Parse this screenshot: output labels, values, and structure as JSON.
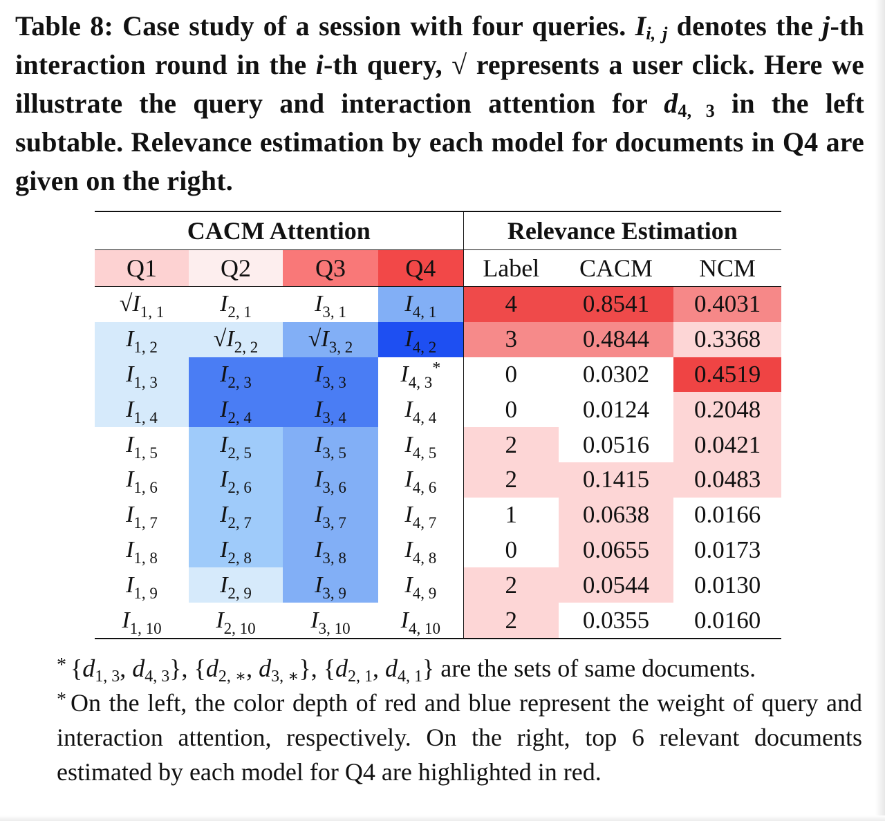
{
  "caption": {
    "lead": "Table 8: Case study of a session with four queries.",
    "sym_I": "I",
    "sym_ij": "i, j",
    "t1": " denotes the ",
    "sym_j": "j",
    "t2": "-th interaction round in the ",
    "sym_i": "i",
    "t3": "-th query, √ represents a user click. Here we illustrate the query and interaction attention for ",
    "sym_d": "d",
    "sym_43": "4, 3",
    "t4": " in the left subtable. Relevance estimation by each model for documents in Q4 are given on the right."
  },
  "table": {
    "group_left": "CACM Attention",
    "group_right": "Relevance Estimation",
    "headers": [
      "Q1",
      "Q2",
      "Q3",
      "Q4",
      "Label",
      "CACM",
      "NCM"
    ],
    "header_colors": [
      "#fdd2d2",
      "#fdeeee",
      "#f97878",
      "#f24848",
      "#ffffff",
      "#ffffff",
      "#ffffff"
    ],
    "rows": [
      {
        "cells": [
          {
            "click": "√",
            "sym": "I",
            "sub": "1, 1",
            "mark": ""
          },
          {
            "click": "",
            "sym": "I",
            "sub": "2, 1",
            "mark": ""
          },
          {
            "click": "",
            "sym": "I",
            "sub": "3, 1",
            "mark": ""
          },
          {
            "click": "",
            "sym": "I",
            "sub": "4, 1",
            "mark": ""
          }
        ],
        "label": "4",
        "cacm": "0.8541",
        "ncm": "0.4031",
        "colors": [
          "#ffffff",
          "#ffffff",
          "#ffffff",
          "#82aff6",
          "#ef4a4a",
          "#ef4a4a",
          "#f68888"
        ]
      },
      {
        "cells": [
          {
            "click": "",
            "sym": "I",
            "sub": "1, 2",
            "mark": ""
          },
          {
            "click": "√",
            "sym": "I",
            "sub": "2, 2",
            "mark": ""
          },
          {
            "click": "√",
            "sym": "I",
            "sub": "3, 2",
            "mark": ""
          },
          {
            "click": "",
            "sym": "I",
            "sub": "4, 2",
            "mark": ""
          }
        ],
        "label": "3",
        "cacm": "0.4844",
        "ncm": "0.3368",
        "colors": [
          "#d6eafb",
          "#d6eafb",
          "#82aff6",
          "#1e4ff2",
          "#f68a8a",
          "#f68a8a",
          "#fdd6d6"
        ]
      },
      {
        "cells": [
          {
            "click": "",
            "sym": "I",
            "sub": "1, 3",
            "mark": ""
          },
          {
            "click": "",
            "sym": "I",
            "sub": "2, 3",
            "mark": ""
          },
          {
            "click": "",
            "sym": "I",
            "sub": "3, 3",
            "mark": ""
          },
          {
            "click": "",
            "sym": "I",
            "sub": "4, 3",
            "mark": "*"
          }
        ],
        "label": "0",
        "cacm": "0.0302",
        "ncm": "0.4519",
        "colors": [
          "#d6eafb",
          "#4a7df4",
          "#4a7df4",
          "#ffffff",
          "#ffffff",
          "#ffffff",
          "#ef4444"
        ]
      },
      {
        "cells": [
          {
            "click": "",
            "sym": "I",
            "sub": "1, 4",
            "mark": ""
          },
          {
            "click": "",
            "sym": "I",
            "sub": "2, 4",
            "mark": ""
          },
          {
            "click": "",
            "sym": "I",
            "sub": "3, 4",
            "mark": ""
          },
          {
            "click": "",
            "sym": "I",
            "sub": "4, 4",
            "mark": ""
          }
        ],
        "label": "0",
        "cacm": "0.0124",
        "ncm": "0.2048",
        "colors": [
          "#d6eafb",
          "#4a7df4",
          "#4a7df4",
          "#ffffff",
          "#ffffff",
          "#ffffff",
          "#fdd6d6"
        ]
      },
      {
        "cells": [
          {
            "click": "",
            "sym": "I",
            "sub": "1, 5",
            "mark": ""
          },
          {
            "click": "",
            "sym": "I",
            "sub": "2, 5",
            "mark": ""
          },
          {
            "click": "",
            "sym": "I",
            "sub": "3, 5",
            "mark": ""
          },
          {
            "click": "",
            "sym": "I",
            "sub": "4, 5",
            "mark": ""
          }
        ],
        "label": "2",
        "cacm": "0.0516",
        "ncm": "0.0421",
        "colors": [
          "#ffffff",
          "#9fcbfa",
          "#82aff6",
          "#ffffff",
          "#fdd6d6",
          "#ffffff",
          "#fdd6d6"
        ]
      },
      {
        "cells": [
          {
            "click": "",
            "sym": "I",
            "sub": "1, 6",
            "mark": ""
          },
          {
            "click": "",
            "sym": "I",
            "sub": "2, 6",
            "mark": ""
          },
          {
            "click": "",
            "sym": "I",
            "sub": "3, 6",
            "mark": ""
          },
          {
            "click": "",
            "sym": "I",
            "sub": "4, 6",
            "mark": ""
          }
        ],
        "label": "2",
        "cacm": "0.1415",
        "ncm": "0.0483",
        "colors": [
          "#ffffff",
          "#9fcbfa",
          "#82aff6",
          "#ffffff",
          "#fdd6d6",
          "#fdd6d6",
          "#fdd6d6"
        ]
      },
      {
        "cells": [
          {
            "click": "",
            "sym": "I",
            "sub": "1, 7",
            "mark": ""
          },
          {
            "click": "",
            "sym": "I",
            "sub": "2, 7",
            "mark": ""
          },
          {
            "click": "",
            "sym": "I",
            "sub": "3, 7",
            "mark": ""
          },
          {
            "click": "",
            "sym": "I",
            "sub": "4, 7",
            "mark": ""
          }
        ],
        "label": "1",
        "cacm": "0.0638",
        "ncm": "0.0166",
        "colors": [
          "#ffffff",
          "#9fcbfa",
          "#82aff6",
          "#ffffff",
          "#ffffff",
          "#fdd6d6",
          "#ffffff"
        ]
      },
      {
        "cells": [
          {
            "click": "",
            "sym": "I",
            "sub": "1, 8",
            "mark": ""
          },
          {
            "click": "",
            "sym": "I",
            "sub": "2, 8",
            "mark": ""
          },
          {
            "click": "",
            "sym": "I",
            "sub": "3, 8",
            "mark": ""
          },
          {
            "click": "",
            "sym": "I",
            "sub": "4, 8",
            "mark": ""
          }
        ],
        "label": "0",
        "cacm": "0.0655",
        "ncm": "0.0173",
        "colors": [
          "#ffffff",
          "#9fcbfa",
          "#82aff6",
          "#ffffff",
          "#ffffff",
          "#fdd6d6",
          "#ffffff"
        ]
      },
      {
        "cells": [
          {
            "click": "",
            "sym": "I",
            "sub": "1, 9",
            "mark": ""
          },
          {
            "click": "",
            "sym": "I",
            "sub": "2, 9",
            "mark": ""
          },
          {
            "click": "",
            "sym": "I",
            "sub": "3, 9",
            "mark": ""
          },
          {
            "click": "",
            "sym": "I",
            "sub": "4, 9",
            "mark": ""
          }
        ],
        "label": "2",
        "cacm": "0.0544",
        "ncm": "0.0130",
        "colors": [
          "#ffffff",
          "#d6eafb",
          "#82aff6",
          "#ffffff",
          "#fdd6d6",
          "#fdd6d6",
          "#ffffff"
        ]
      },
      {
        "cells": [
          {
            "click": "",
            "sym": "I",
            "sub": "1, 10",
            "mark": ""
          },
          {
            "click": "",
            "sym": "I",
            "sub": "2, 10",
            "mark": ""
          },
          {
            "click": "",
            "sym": "I",
            "sub": "3, 10",
            "mark": ""
          },
          {
            "click": "",
            "sym": "I",
            "sub": "4, 10",
            "mark": ""
          }
        ],
        "label": "2",
        "cacm": "0.0355",
        "ncm": "0.0160",
        "colors": [
          "#ffffff",
          "#ffffff",
          "#ffffff",
          "#ffffff",
          "#fdd6d6",
          "#ffffff",
          "#ffffff"
        ]
      }
    ]
  },
  "notes": {
    "star": "*",
    "n1_parts": [
      {
        "t": "{",
        "i": false,
        "sub": ""
      },
      {
        "t": "d",
        "i": true,
        "sub": "1, 3"
      },
      {
        "t": ", ",
        "i": false,
        "sub": ""
      },
      {
        "t": "d",
        "i": true,
        "sub": "4, 3"
      },
      {
        "t": "}, {",
        "i": false,
        "sub": ""
      },
      {
        "t": "d",
        "i": true,
        "sub": "2, ∗"
      },
      {
        "t": ", ",
        "i": false,
        "sub": ""
      },
      {
        "t": "d",
        "i": true,
        "sub": "3, ∗"
      },
      {
        "t": "}, {",
        "i": false,
        "sub": ""
      },
      {
        "t": "d",
        "i": true,
        "sub": "2, 1"
      },
      {
        "t": ", ",
        "i": false,
        "sub": ""
      },
      {
        "t": "d",
        "i": true,
        "sub": "4, 1"
      },
      {
        "t": "} are the sets of same documents.",
        "i": false,
        "sub": ""
      }
    ],
    "n2": "On the left, the color depth of red and blue represent the weight of query and interaction attention, respectively. On the right, top 6 relevant documents estimated by each model for Q4 are highlighted in red."
  }
}
